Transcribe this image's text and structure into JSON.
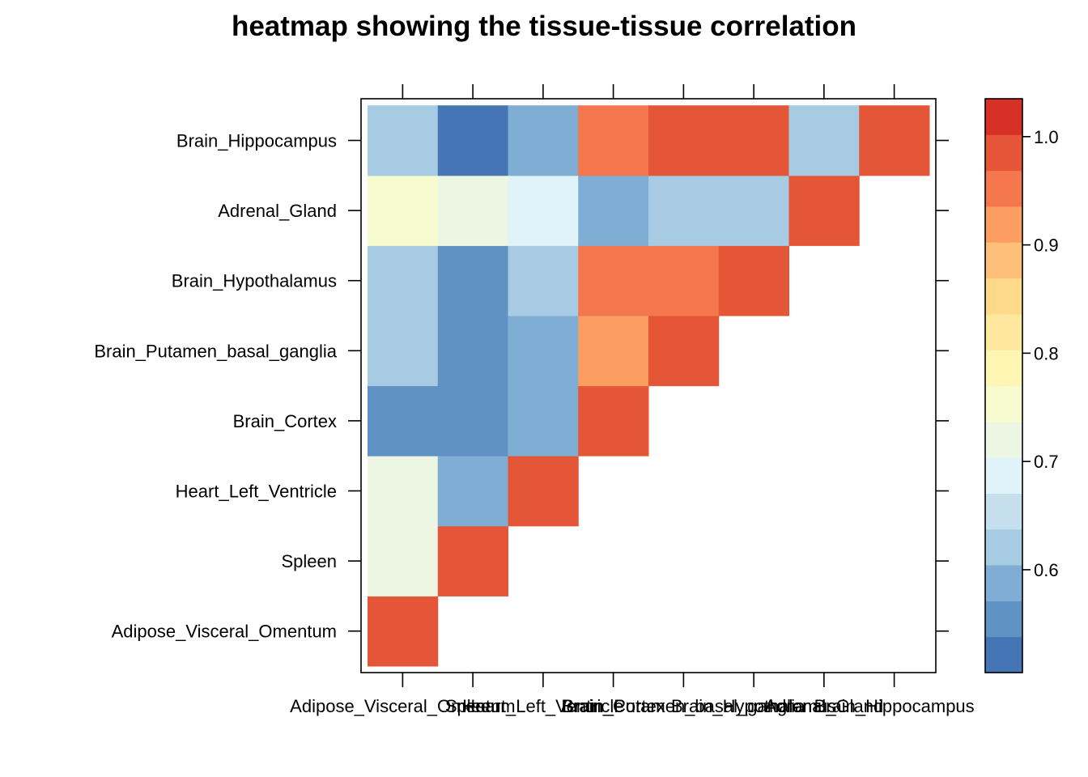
{
  "chart_data": {
    "type": "heatmap",
    "title": "heatmap showing the tissue-tissue correlation",
    "xlabel": "",
    "ylabel": "",
    "x_labels": [
      "Adipose_Visceral_Omentum",
      "Spleen",
      "Heart_Left_Ventricle",
      "Brain_Cortex",
      "Brain_Putamen_basal_ganglia",
      "Brain_Hypothalamus",
      "Adrenal_Gland",
      "Brain_Hippocampus"
    ],
    "y_labels": [
      "Adipose_Visceral_Omentum",
      "Spleen",
      "Heart_Left_Ventricle",
      "Brain_Cortex",
      "Brain_Putamen_basal_ganglia",
      "Brain_Hypothalamus",
      "Adrenal_Gland",
      "Brain_Hippocampus"
    ],
    "values": [
      [
        1.0,
        null,
        null,
        null,
        null,
        null,
        null,
        null
      ],
      [
        0.72,
        1.0,
        null,
        null,
        null,
        null,
        null,
        null
      ],
      [
        0.72,
        0.59,
        1.0,
        null,
        null,
        null,
        null,
        null
      ],
      [
        0.56,
        0.56,
        0.59,
        1.0,
        null,
        null,
        null,
        null
      ],
      [
        0.61,
        0.56,
        0.59,
        0.93,
        1.0,
        null,
        null,
        null
      ],
      [
        0.61,
        0.56,
        0.63,
        0.96,
        0.96,
        1.0,
        null,
        null
      ],
      [
        0.75,
        0.72,
        0.69,
        0.59,
        0.63,
        0.63,
        1.0,
        null
      ],
      [
        0.61,
        0.53,
        0.59,
        0.96,
        0.98,
        0.98,
        0.63,
        1.0
      ]
    ],
    "colorbar": {
      "ticks": [
        0.6,
        0.7,
        0.8,
        0.9,
        1.0
      ],
      "tick_labels": [
        "0.6",
        "0.7",
        "0.8",
        "0.9",
        "1.0"
      ],
      "range": [
        0.505,
        1.035
      ],
      "colors": [
        "#4575B4",
        "#6092C4",
        "#7FADD3",
        "#A6CBE3",
        "#C5DFEC",
        "#E0F3F8",
        "#EDF6E3",
        "#F7FBD0",
        "#FFF6B3",
        "#FEE8A0",
        "#FED98A",
        "#FDBF7A",
        "#FC9E62",
        "#F4774E",
        "#E55538",
        "#D73027"
      ]
    }
  }
}
